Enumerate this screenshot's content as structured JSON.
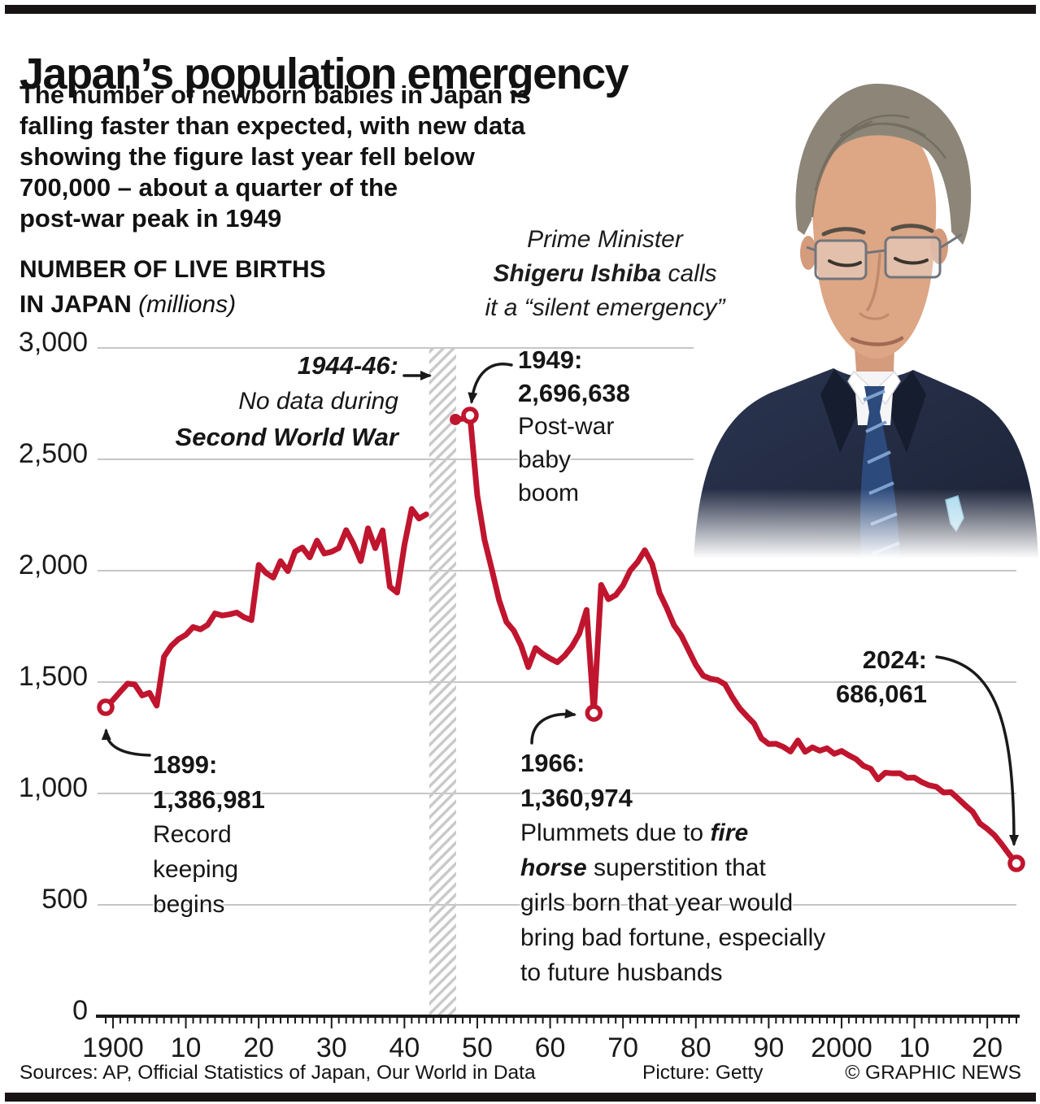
{
  "page": {
    "title": "Japan’s population emergency",
    "intro_lines": [
      "The number of newborn babies in Japan is",
      "falling faster than expected, with new data",
      "showing the figure last year fell below",
      "700,000 – about a quarter of the",
      "post-war peak in 1949"
    ],
    "quote": {
      "line1": "Prime Minister",
      "name": "Shigeru Ishiba",
      "after_name": "calls",
      "line3": "it a “silent emergency”"
    },
    "footer": {
      "sources": "Sources: AP, Official Statistics of Japan, Our World in Data",
      "picture": "Picture: Getty",
      "credit": "© GRAPHIC NEWS"
    }
  },
  "chart_heading": {
    "line1": "NUMBER OF LIVE BIRTHS",
    "line2_bold": "IN JAPAN",
    "line2_unit": "(millions)"
  },
  "chart_data": {
    "type": "line",
    "title": "Number of live births in Japan",
    "unit": "thousands of live births per year",
    "xlabel": "Year",
    "ylabel": "Live births (thousands, axis headed “millions” on graphic)",
    "x_range": [
      1899,
      2024
    ],
    "ylim": [
      0,
      3000
    ],
    "grid": true,
    "line_color": "#c0152e",
    "grid_color": "#c6c6c6",
    "band_color": "#c9c9c9",
    "yticks": [
      {
        "v": 3000,
        "label": "3,000"
      },
      {
        "v": 2500,
        "label": "2,500"
      },
      {
        "v": 2000,
        "label": "2,000"
      },
      {
        "v": 1500,
        "label": "1,500"
      },
      {
        "v": 1000,
        "label": "1,000"
      },
      {
        "v": 500,
        "label": "500"
      },
      {
        "v": 0,
        "label": "0"
      }
    ],
    "xticks": [
      {
        "year": 1900,
        "label": "1900"
      },
      {
        "year": 1910,
        "label": "10"
      },
      {
        "year": 1920,
        "label": "20"
      },
      {
        "year": 1930,
        "label": "30"
      },
      {
        "year": 1940,
        "label": "40"
      },
      {
        "year": 1950,
        "label": "50"
      },
      {
        "year": 1960,
        "label": "60"
      },
      {
        "year": 1970,
        "label": "70"
      },
      {
        "year": 1980,
        "label": "80"
      },
      {
        "year": 1990,
        "label": "90"
      },
      {
        "year": 2000,
        "label": "2000"
      },
      {
        "year": 2010,
        "label": "10"
      },
      {
        "year": 2020,
        "label": "20"
      }
    ],
    "no_data_band": {
      "from": 1944,
      "to": 1946
    },
    "series": [
      {
        "name": "Live births (thousands)",
        "segments": [
          [
            [
              1899,
              1387
            ],
            [
              1900,
              1420
            ],
            [
              1901,
              1457
            ],
            [
              1902,
              1493
            ],
            [
              1903,
              1489
            ],
            [
              1904,
              1440
            ],
            [
              1905,
              1452
            ],
            [
              1906,
              1394
            ],
            [
              1907,
              1614
            ],
            [
              1908,
              1662
            ],
            [
              1909,
              1693
            ],
            [
              1910,
              1712
            ],
            [
              1911,
              1747
            ],
            [
              1912,
              1737
            ],
            [
              1913,
              1757
            ],
            [
              1914,
              1808
            ],
            [
              1915,
              1799
            ],
            [
              1916,
              1804
            ],
            [
              1917,
              1812
            ],
            [
              1918,
              1791
            ],
            [
              1919,
              1778
            ],
            [
              1920,
              2026
            ],
            [
              1921,
              1990
            ],
            [
              1922,
              1969
            ],
            [
              1923,
              2043
            ],
            [
              1924,
              1998
            ],
            [
              1925,
              2086
            ],
            [
              1926,
              2104
            ],
            [
              1927,
              2060
            ],
            [
              1928,
              2135
            ],
            [
              1929,
              2077
            ],
            [
              1930,
              2085
            ],
            [
              1931,
              2102
            ],
            [
              1932,
              2182
            ],
            [
              1933,
              2121
            ],
            [
              1934,
              2043
            ],
            [
              1935,
              2190
            ],
            [
              1936,
              2101
            ],
            [
              1937,
              2181
            ],
            [
              1938,
              1928
            ],
            [
              1939,
              1902
            ],
            [
              1940,
              2116
            ],
            [
              1941,
              2277
            ],
            [
              1942,
              2234
            ],
            [
              1943,
              2253
            ]
          ],
          [
            [
              1947,
              2679
            ],
            [
              1948,
              2682
            ],
            [
              1949,
              2697
            ],
            [
              1950,
              2338
            ],
            [
              1951,
              2138
            ],
            [
              1952,
              2005
            ],
            [
              1953,
              1868
            ],
            [
              1954,
              1770
            ],
            [
              1955,
              1731
            ],
            [
              1956,
              1665
            ],
            [
              1957,
              1567
            ],
            [
              1958,
              1653
            ],
            [
              1959,
              1626
            ],
            [
              1960,
              1606
            ],
            [
              1961,
              1589
            ],
            [
              1962,
              1619
            ],
            [
              1963,
              1660
            ],
            [
              1964,
              1717
            ],
            [
              1965,
              1824
            ],
            [
              1966,
              1361
            ],
            [
              1967,
              1936
            ],
            [
              1968,
              1872
            ],
            [
              1969,
              1890
            ],
            [
              1970,
              1934
            ],
            [
              1971,
              2001
            ],
            [
              1972,
              2039
            ],
            [
              1973,
              2092
            ],
            [
              1974,
              2030
            ],
            [
              1975,
              1901
            ],
            [
              1976,
              1833
            ],
            [
              1977,
              1755
            ],
            [
              1978,
              1709
            ],
            [
              1979,
              1643
            ],
            [
              1980,
              1577
            ],
            [
              1981,
              1529
            ],
            [
              1982,
              1515
            ],
            [
              1983,
              1509
            ],
            [
              1984,
              1490
            ],
            [
              1985,
              1432
            ],
            [
              1986,
              1383
            ],
            [
              1987,
              1347
            ],
            [
              1988,
              1314
            ],
            [
              1989,
              1247
            ],
            [
              1990,
              1222
            ],
            [
              1991,
              1223
            ],
            [
              1992,
              1209
            ],
            [
              1993,
              1188
            ],
            [
              1994,
              1238
            ],
            [
              1995,
              1187
            ],
            [
              1996,
              1207
            ],
            [
              1997,
              1192
            ],
            [
              1998,
              1203
            ],
            [
              1999,
              1178
            ],
            [
              2000,
              1191
            ],
            [
              2001,
              1171
            ],
            [
              2002,
              1154
            ],
            [
              2003,
              1124
            ],
            [
              2004,
              1111
            ],
            [
              2005,
              1063
            ],
            [
              2006,
              1093
            ],
            [
              2007,
              1090
            ],
            [
              2008,
              1091
            ],
            [
              2009,
              1070
            ],
            [
              2010,
              1071
            ],
            [
              2011,
              1051
            ],
            [
              2012,
              1037
            ],
            [
              2013,
              1030
            ],
            [
              2014,
              1004
            ],
            [
              2015,
              1006
            ],
            [
              2016,
              977
            ],
            [
              2017,
              946
            ],
            [
              2018,
              918
            ],
            [
              2019,
              865
            ],
            [
              2020,
              841
            ],
            [
              2021,
              812
            ],
            [
              2022,
              771
            ],
            [
              2023,
              727
            ],
            [
              2024,
              686
            ]
          ]
        ]
      }
    ],
    "markers": {
      "open_circle_years": [
        1899,
        1949,
        1966,
        2024
      ],
      "dot_years": [
        1947
      ]
    },
    "annotations": {
      "war": {
        "line1": "1944-46:",
        "line2": "No data during",
        "line3": "Second World War"
      },
      "y1949": {
        "year": "1949:",
        "value": "2,696,638",
        "desc_lines": [
          "Post-war",
          "baby",
          "boom"
        ]
      },
      "y1899": {
        "year": "1899:",
        "value": "1,386,981",
        "desc_lines": [
          "Record",
          "keeping",
          "begins"
        ]
      },
      "y1966": {
        "year": "1966:",
        "value": "1,360,974",
        "l1_before": "Plummets due to ",
        "l1_em": "fire",
        "l2_em": "horse",
        "l2_rest": " superstition that",
        "l3": "girls born that year would",
        "l4": "bring bad fortune, especially",
        "l5": "to future husbands"
      },
      "y2024": {
        "year": "2024:",
        "value": "686,061"
      }
    }
  },
  "colors": {
    "line_red": "#c0152e",
    "grid_gray": "#c6c6c6",
    "band_gray": "#c9c9c9",
    "rule_black": "#191314"
  }
}
